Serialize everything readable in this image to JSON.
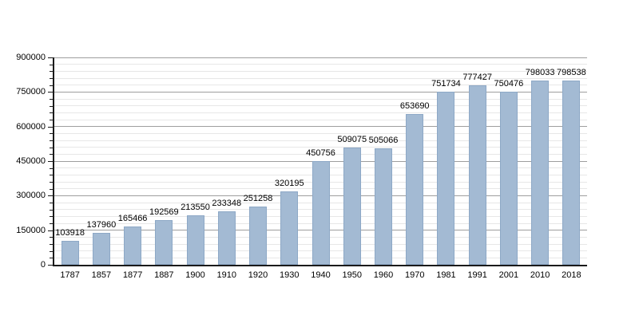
{
  "chart_data": {
    "type": "bar",
    "title": "",
    "xlabel": "",
    "ylabel": "",
    "categories": [
      "1787",
      "1857",
      "1877",
      "1887",
      "1900",
      "1910",
      "1920",
      "1930",
      "1940",
      "1950",
      "1960",
      "1970",
      "1981",
      "1991",
      "2001",
      "2010",
      "2018"
    ],
    "values": [
      103918,
      137960,
      165466,
      192569,
      213550,
      233348,
      251258,
      320195,
      450756,
      509075,
      505066,
      653690,
      751734,
      777427,
      750476,
      798033,
      798538
    ],
    "value_labels": [
      "103918",
      "137960",
      "165466",
      "192569",
      "213550",
      "233348",
      "251258",
      "320195",
      "450756",
      "509075",
      "505066",
      "653690",
      "751734",
      "777427",
      "750476",
      "798033",
      "798538"
    ],
    "ylim": [
      0,
      900000
    ],
    "y_major_step": 150000,
    "y_minor_step": 30000,
    "y_tick_labels": [
      "0",
      "150000",
      "300000",
      "450000",
      "600000",
      "750000",
      "900000"
    ],
    "grid": true,
    "legend": "none",
    "colors": {
      "bar_fill": "#a3bad3",
      "bar_border": "#8da8c6",
      "major_grid": "#9e9e9e",
      "minor_grid": "#e7e7e7",
      "axis": "#1a1a1a",
      "text": "#000000",
      "background": "#ffffff"
    }
  }
}
